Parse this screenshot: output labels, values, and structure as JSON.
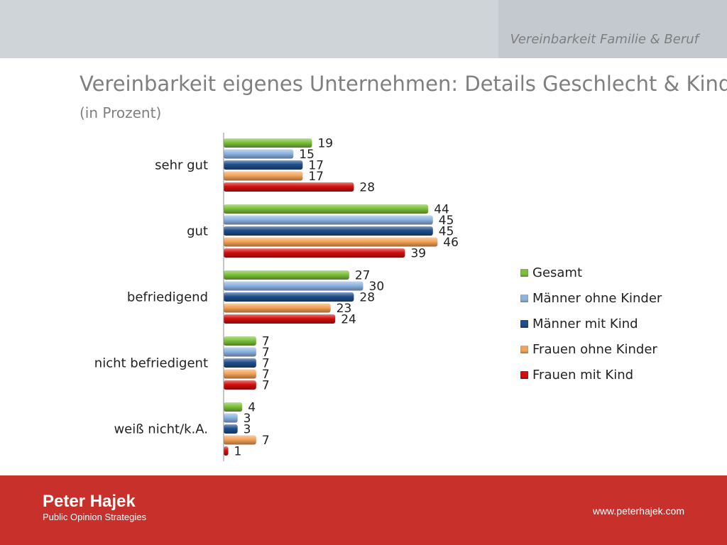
{
  "header": {
    "section_title": "Vereinbarkeit Familie & Beruf"
  },
  "title": "Vereinbarkeit eigenes Unternehmen: Details Geschlecht & Kind",
  "subtitle": "(in Prozent)",
  "footer": {
    "logo_name": "Peter Hajek",
    "logo_tagline": "Public Opinion Strategies",
    "url": "www.peterhajek.com"
  },
  "colors": {
    "gesamt": "#7cc13a",
    "maenner_ohne_kinder": "#8db3e2",
    "maenner_mit_kind": "#1f4e8c",
    "frauen_ohne_kinder": "#f4a257",
    "frauen_mit_kind": "#d40f0f"
  },
  "chart_data": {
    "type": "bar",
    "orientation": "horizontal",
    "categories": [
      "sehr gut",
      "gut",
      "befriedigend",
      "nicht befriedigent",
      "weiß nicht/k.A."
    ],
    "series": [
      {
        "name": "Gesamt",
        "values": [
          19,
          44,
          27,
          7,
          4
        ],
        "color": "#7cc13a"
      },
      {
        "name": "Männer ohne Kinder",
        "values": [
          15,
          45,
          30,
          7,
          3
        ],
        "color": "#8db3e2"
      },
      {
        "name": "Männer mit Kind",
        "values": [
          17,
          45,
          28,
          7,
          3
        ],
        "color": "#1f4e8c"
      },
      {
        "name": "Frauen ohne Kinder",
        "values": [
          17,
          46,
          23,
          7,
          7
        ],
        "color": "#f4a257"
      },
      {
        "name": "Frauen mit Kind",
        "values": [
          28,
          39,
          24,
          7,
          1
        ],
        "color": "#d40f0f"
      }
    ],
    "data_labels": true,
    "legend_position": "right",
    "grid": false
  }
}
